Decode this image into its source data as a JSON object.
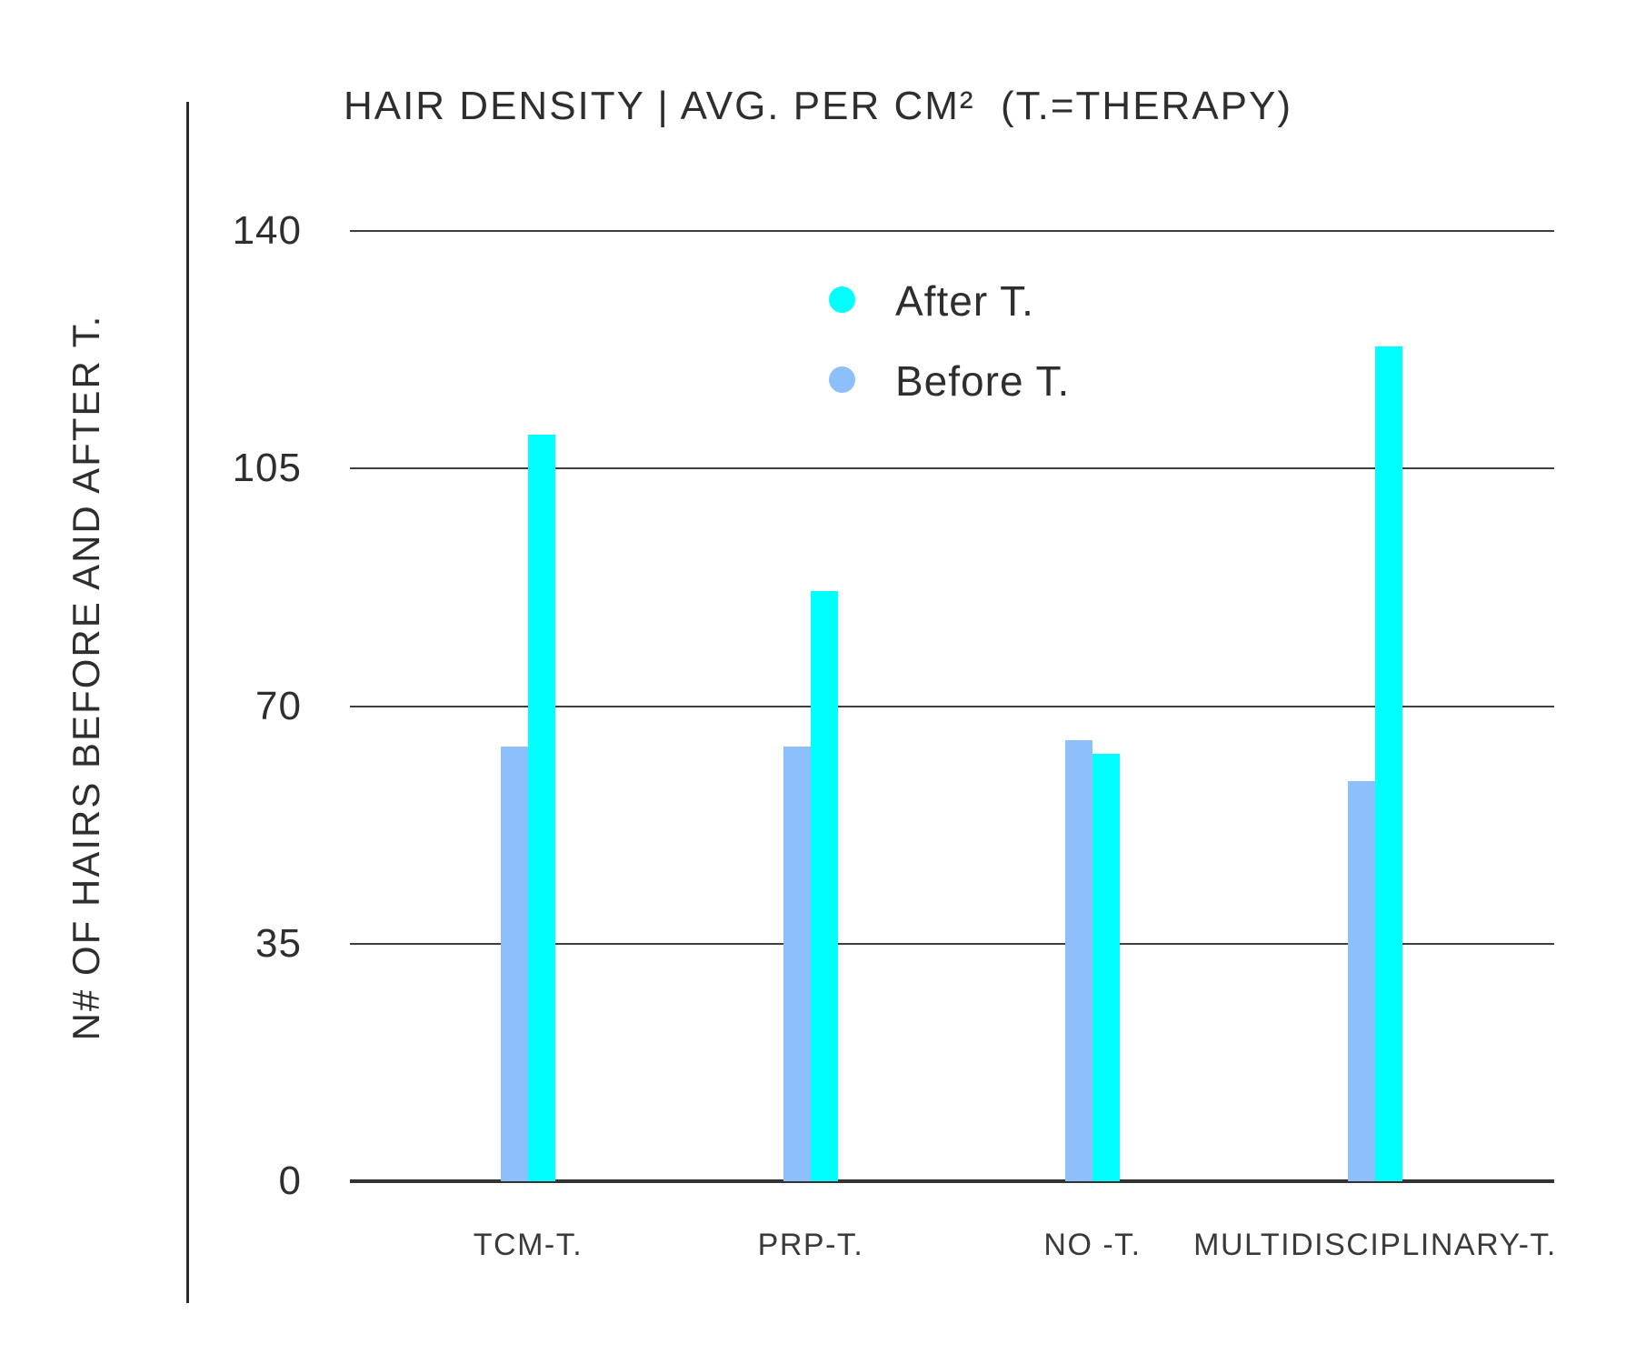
{
  "chart_data": {
    "type": "bar",
    "title": "HAIR DENSITY | AVG. PER CM²  (T.=THERAPY)",
    "ylabel": "N# OF HAIRS BEFORE AND AFTER T.",
    "xlabel": "",
    "categories": [
      "TCM-T.",
      "PRP-T.",
      "NO -T.",
      "MULTIDISCIPLINARY-T."
    ],
    "series": [
      {
        "name": "After T.",
        "color": "#00FFFF",
        "values": [
          110,
          87,
          63,
          123
        ]
      },
      {
        "name": "Before T.",
        "color": "#8DBFFA",
        "values": [
          64,
          64,
          65,
          59
        ]
      }
    ],
    "ylim": [
      0,
      140
    ],
    "yticks": [
      140,
      105,
      70,
      35,
      0
    ],
    "grid": true,
    "legend_position": "upper center",
    "colors": {
      "after": "#00FFFF",
      "before": "#8DBFFA",
      "axis": "#2b2b2b",
      "gridline": "#3f3f3f",
      "text": "#2e2e2e"
    }
  }
}
